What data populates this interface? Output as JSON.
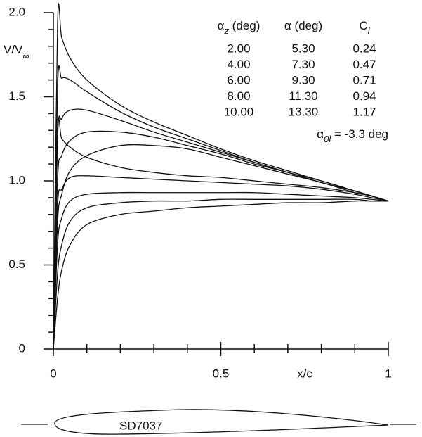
{
  "chart_data": {
    "type": "line",
    "x": [
      0,
      0.0125,
      0.025,
      0.05,
      0.1,
      0.2,
      0.3,
      0.4,
      0.5,
      0.6,
      0.7,
      0.8,
      0.9,
      0.95,
      1
    ],
    "color": "#111111",
    "series": [
      {
        "values": [
          0,
          1.93,
          1.85,
          1.73,
          1.6,
          1.45,
          1.35,
          1.27,
          1.19,
          1.12,
          1.06,
          1.0,
          0.94,
          0.91,
          0.88
        ]
      },
      {
        "values": [
          0,
          1.55,
          1.61,
          1.6,
          1.53,
          1.41,
          1.32,
          1.25,
          1.18,
          1.11,
          1.05,
          1.0,
          0.94,
          0.91,
          0.88
        ]
      },
      {
        "values": [
          0,
          1.25,
          1.37,
          1.42,
          1.42,
          1.36,
          1.29,
          1.23,
          1.17,
          1.11,
          1.05,
          0.99,
          0.94,
          0.91,
          0.88
        ]
      },
      {
        "values": [
          0,
          1.0,
          1.15,
          1.24,
          1.29,
          1.29,
          1.26,
          1.21,
          1.16,
          1.1,
          1.05,
          0.99,
          0.94,
          0.91,
          0.88
        ]
      },
      {
        "values": [
          0,
          0.75,
          0.92,
          1.06,
          1.15,
          1.21,
          1.21,
          1.19,
          1.14,
          1.09,
          1.04,
          0.99,
          0.93,
          0.91,
          0.88
        ]
      },
      {
        "values": [
          0,
          1.29,
          1.25,
          1.2,
          1.14,
          1.08,
          1.05,
          1.03,
          1.02,
          1.0,
          0.98,
          0.96,
          0.93,
          0.91,
          0.88
        ]
      },
      {
        "values": [
          0,
          0.85,
          0.95,
          1.02,
          1.03,
          1.02,
          1.01,
          1.0,
          0.99,
          0.98,
          0.97,
          0.95,
          0.92,
          0.9,
          0.88
        ]
      },
      {
        "values": [
          0,
          0.62,
          0.78,
          0.88,
          0.92,
          0.93,
          0.93,
          0.93,
          0.93,
          0.93,
          0.92,
          0.91,
          0.9,
          0.89,
          0.88
        ]
      },
      {
        "values": [
          0,
          0.45,
          0.62,
          0.76,
          0.84,
          0.87,
          0.88,
          0.88,
          0.89,
          0.89,
          0.89,
          0.89,
          0.89,
          0.88,
          0.88
        ]
      },
      {
        "values": [
          0,
          0.3,
          0.47,
          0.62,
          0.74,
          0.8,
          0.82,
          0.84,
          0.85,
          0.86,
          0.87,
          0.87,
          0.88,
          0.88,
          0.88
        ]
      }
    ],
    "xlim": [
      0,
      1
    ],
    "ylim": [
      0,
      2
    ],
    "xticks": [
      0,
      0.5,
      1
    ],
    "xminorticks": [
      0.1,
      0.2,
      0.3,
      0.4,
      0.6,
      0.7,
      0.8,
      0.9
    ],
    "yticks": [
      0,
      0.5,
      {
        "value": 1,
        "label": "1.0"
      },
      1.5,
      {
        "value": 2,
        "label": "2.0"
      }
    ],
    "yminorticks": [
      0.1,
      0.2,
      0.3,
      0.4,
      0.6,
      0.7,
      0.8,
      0.9,
      1.1,
      1.2,
      1.3,
      1.4,
      1.6,
      1.7,
      1.8,
      1.9
    ],
    "xlabel": "x/c",
    "ylabel": {
      "main": "V/V",
      "sub": "∞"
    },
    "table": {
      "columns": [
        {
          "symbol": "α",
          "sub": "z",
          "rest": " (deg)"
        },
        {
          "symbol": "α",
          "sub": "",
          "rest": " (deg)"
        },
        {
          "symbol": "C",
          "sub": "l",
          "rest": ""
        }
      ],
      "rows": [
        [
          "2.00",
          "5.30",
          "0.24"
        ],
        [
          "4.00",
          "7.30",
          "0.47"
        ],
        [
          "6.00",
          "9.30",
          "0.71"
        ],
        [
          "8.00",
          "11.30",
          "0.94"
        ],
        [
          "10.00",
          "13.30",
          "1.17"
        ]
      ]
    },
    "annotation": {
      "symbol": "α",
      "sub": "0l",
      "rest": " = -3.3 deg"
    },
    "airfoil": "SD7037"
  }
}
